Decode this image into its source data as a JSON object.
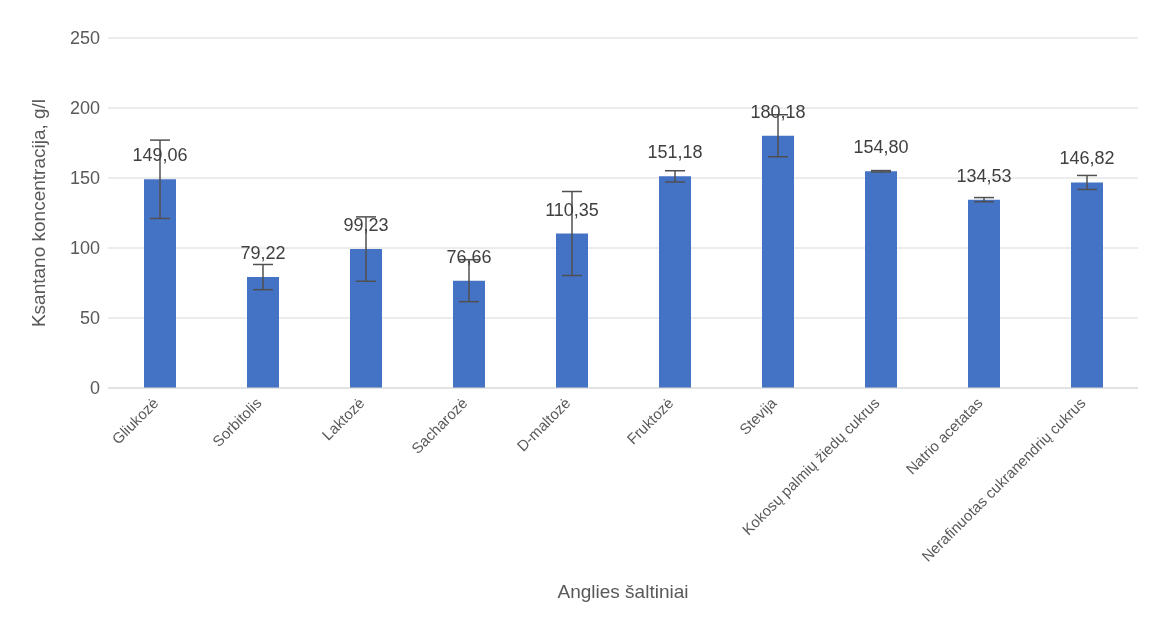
{
  "chart_data": {
    "type": "bar",
    "xlabel": "Anglies šaltiniai",
    "ylabel": "Ksantano koncentracija, g/l",
    "categories": [
      "Gliukozė",
      "Sorbitolis",
      "Laktozė",
      "Sacharozė",
      "D-maltozė",
      "Fruktozė",
      "Stevija",
      "Kokosų palmių žiedų cukrus",
      "Natrio acetatas",
      "Nerafinuotas cukranendrių cukrus"
    ],
    "values": [
      149.06,
      79.22,
      99.23,
      76.66,
      110.35,
      151.18,
      180.18,
      154.8,
      134.53,
      146.82
    ],
    "value_labels": [
      "149,06",
      "79,22",
      "99,23",
      "76,66",
      "110,35",
      "151,18",
      "180,18",
      "154,80",
      "134,53",
      "146,82"
    ],
    "errors": [
      28,
      9,
      23,
      15,
      30,
      4,
      15,
      0.5,
      1.5,
      5
    ],
    "color": "#4472c4",
    "ylim": [
      0,
      250
    ],
    "yticks": [
      0,
      50,
      100,
      150,
      200,
      250
    ],
    "grid": "y"
  }
}
